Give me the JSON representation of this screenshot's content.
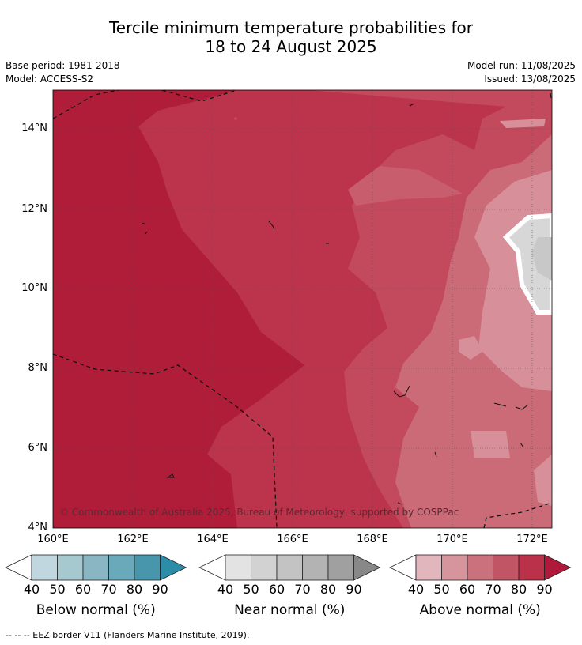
{
  "header": {
    "title_line1": "Tercile minimum temperature probabilities for",
    "title_line2": "18 to 24 August 2025",
    "base_period": "Base period: 1981-2018",
    "model": "Model: ACCESS-S2",
    "model_run": "Model run: 11/08/2025",
    "issued": "Issued: 13/08/2025"
  },
  "map": {
    "lat_labels": [
      "14°N",
      "12°N",
      "10°N",
      "8°N",
      "6°N",
      "4°N"
    ],
    "lon_labels": [
      "160°E",
      "162°E",
      "164°E",
      "166°E",
      "168°E",
      "170°E",
      "172°E"
    ],
    "credit": "© Commonwealth of Australia 2025, Bureau of Meteorology, supported by COSPPac"
  },
  "colorbars": [
    {
      "label": "Below normal (%)",
      "ticks": [
        "40",
        "50",
        "60",
        "70",
        "80",
        "90"
      ],
      "colors": [
        "#ffffff",
        "#c0d7df",
        "#a6c8cf",
        "#89b6c2",
        "#6aa9b9",
        "#4796ab",
        "#2c8da8"
      ]
    },
    {
      "label": "Near normal (%)",
      "ticks": [
        "40",
        "50",
        "60",
        "70",
        "80",
        "90"
      ],
      "colors": [
        "#ffffff",
        "#e3e3e3",
        "#d2d2d2",
        "#c3c3c3",
        "#b3b3b3",
        "#a0a0a0",
        "#888888"
      ]
    },
    {
      "label": "Above normal (%)",
      "ticks": [
        "40",
        "50",
        "60",
        "70",
        "80",
        "90"
      ],
      "colors": [
        "#ffffff",
        "#e1b6bc",
        "#d6949d",
        "#cb717e",
        "#c25565",
        "#ba3149",
        "#b0193a"
      ]
    }
  ],
  "footer": "--  --  -- EEZ border V11 (Flanders Marine Institute, 2019)."
}
